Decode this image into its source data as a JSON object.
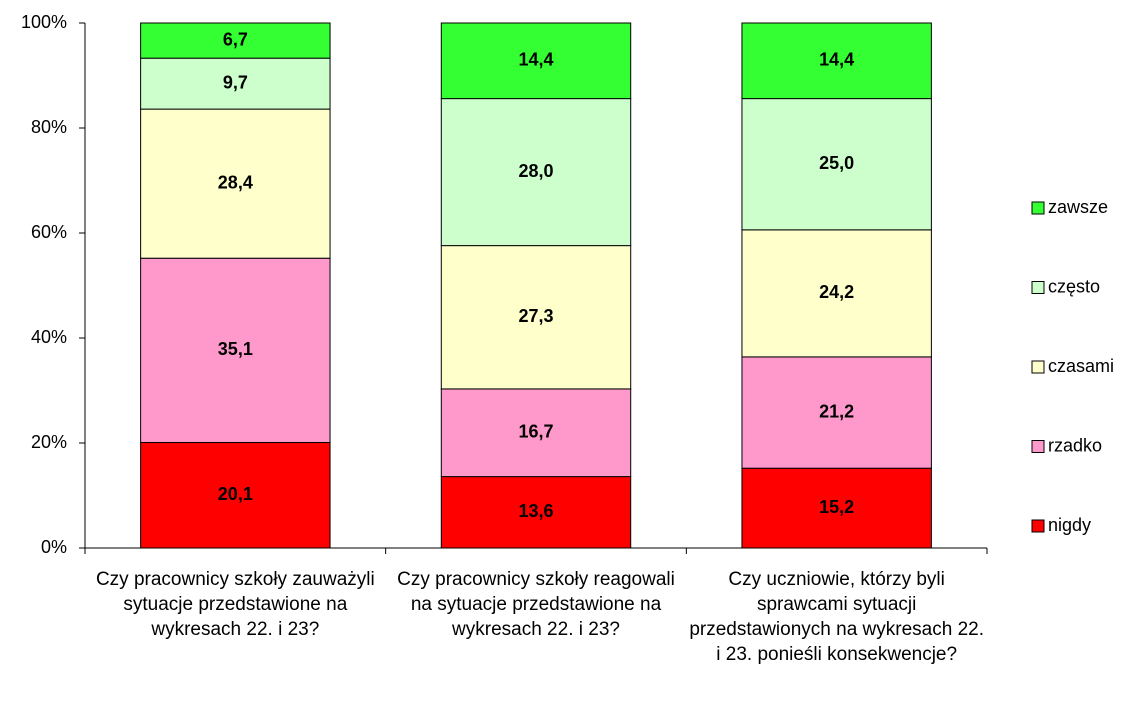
{
  "chart_data": {
    "type": "stacked_bar",
    "categories": [
      "Czy pracownicy szkoły zauważyli sytuacje przedstawione na wykresach 22. i 23?",
      "Czy pracownicy szkoły reagowali na sytuacje przedstawione na wykresach 22. i 23?",
      "Czy uczniowie, którzy byli sprawcami sytuacji przedstawionych na wykresach 22. i 23. ponieśli konsekwencje?"
    ],
    "series": [
      {
        "name": "nigdy",
        "color": "#ff0000",
        "values": [
          20.1,
          13.6,
          15.2
        ],
        "value_labels": [
          "20,1",
          "13,6",
          "15,2"
        ]
      },
      {
        "name": "rzadko",
        "color": "#ff99cc",
        "values": [
          35.1,
          16.7,
          21.2
        ],
        "value_labels": [
          "35,1",
          "16,7",
          "21,2"
        ]
      },
      {
        "name": "czasami",
        "color": "#ffffcc",
        "values": [
          28.4,
          27.3,
          24.2
        ],
        "value_labels": [
          "28,4",
          "27,3",
          "24,2"
        ]
      },
      {
        "name": "często",
        "color": "#ccffcc",
        "values": [
          9.7,
          28.0,
          25.0
        ],
        "value_labels": [
          "9,7",
          "28,0",
          "25,0"
        ]
      },
      {
        "name": "zawsze",
        "color": "#33ff33",
        "values": [
          6.7,
          14.4,
          14.4
        ],
        "value_labels": [
          "6,7",
          "14,4",
          "14,4"
        ]
      }
    ],
    "ylim": [
      0,
      100
    ],
    "yticks": [
      {
        "value": 0,
        "label": "0%"
      },
      {
        "value": 20,
        "label": "20%"
      },
      {
        "value": 40,
        "label": "40%"
      },
      {
        "value": 60,
        "label": "60%"
      },
      {
        "value": 80,
        "label": "80%"
      },
      {
        "value": 100,
        "label": "100%"
      }
    ],
    "legend": "right"
  }
}
